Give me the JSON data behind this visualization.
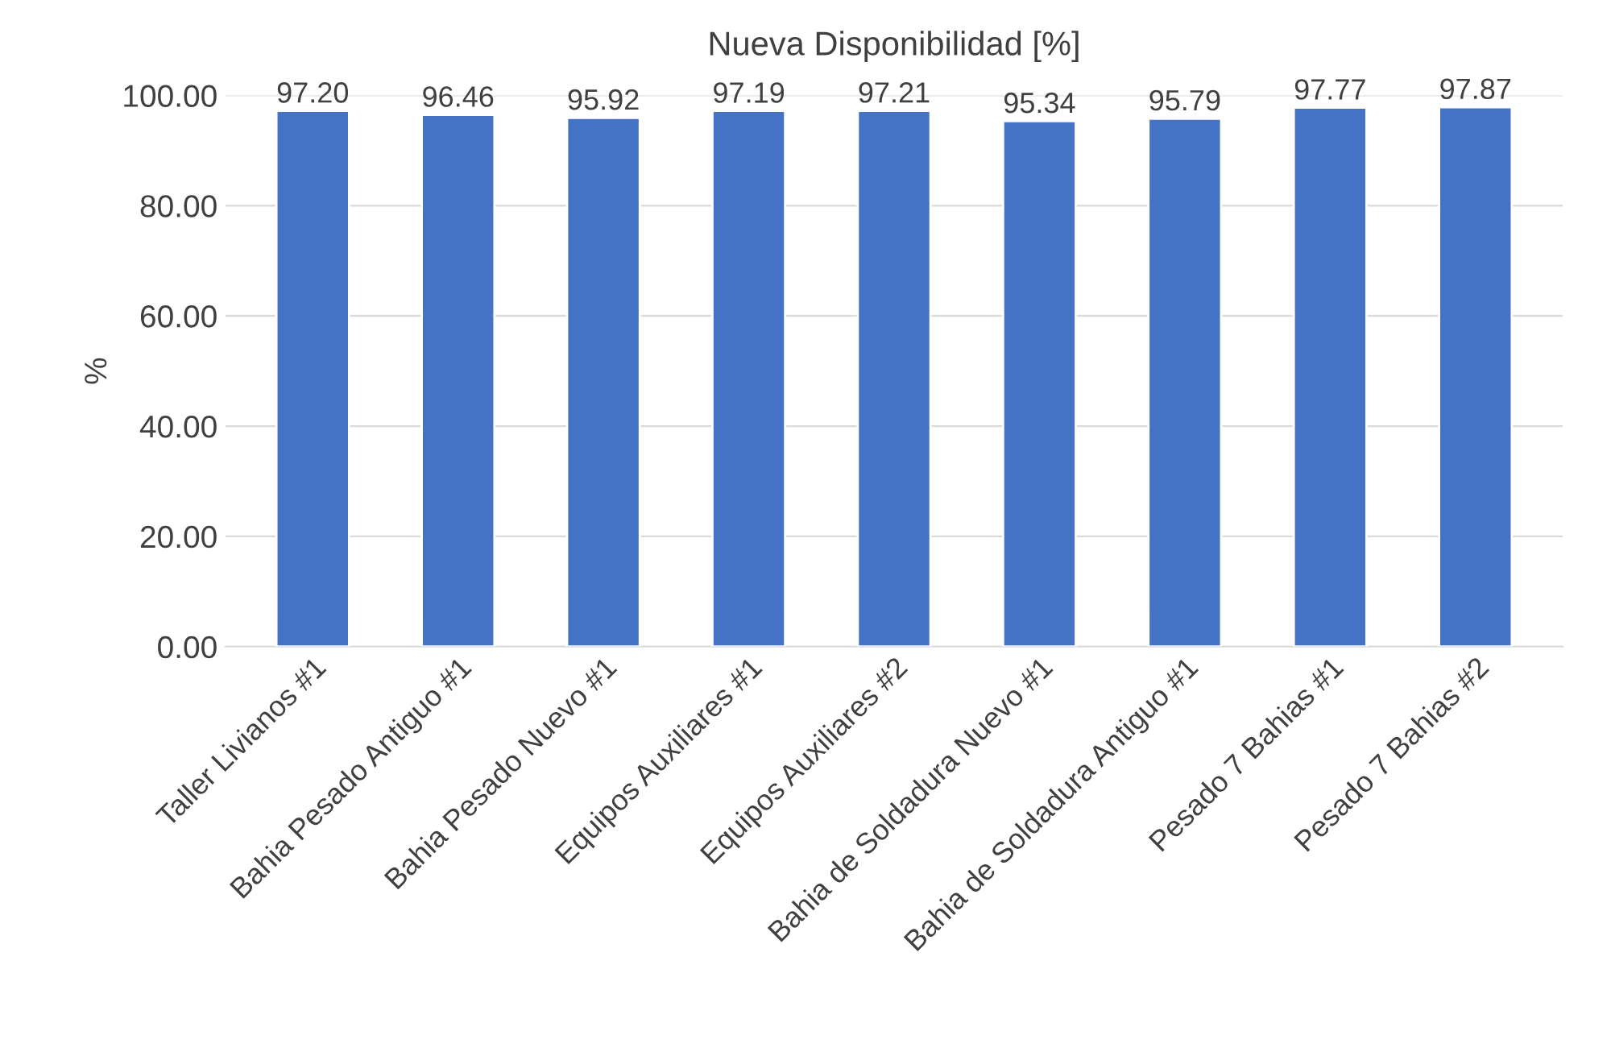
{
  "chart_data": {
    "type": "bar",
    "title": "Nueva Disponibilidad [%]",
    "ylabel": "%",
    "categories": [
      "Taller Livianos #1",
      "Bahia Pesado Antiguo #1",
      "Bahia Pesado Nuevo #1",
      "Equipos Auxiliares #1",
      "Equipos Auxiliares #2",
      "Bahia de Soldadura Nuevo #1",
      "Bahia de Soldadura Antiguo #1",
      "Pesado 7 Bahias #1",
      "Pesado 7 Bahias #2"
    ],
    "values": [
      97.2,
      96.46,
      95.92,
      97.19,
      97.21,
      95.34,
      95.79,
      97.77,
      97.87
    ],
    "value_labels": [
      "97.20",
      "96.46",
      "95.92",
      "97.19",
      "97.21",
      "95.34",
      "95.79",
      "97.77",
      "97.87"
    ],
    "color": "#4472c4",
    "ylim": [
      0,
      100
    ],
    "yticks": [
      {
        "value": 0,
        "label": "0.00"
      },
      {
        "value": 20,
        "label": "20.00"
      },
      {
        "value": 40,
        "label": "40.00"
      },
      {
        "value": 60,
        "label": "60.00"
      },
      {
        "value": 80,
        "label": "80.00"
      },
      {
        "value": 100,
        "label": "100.00"
      }
    ],
    "grid": "y"
  }
}
